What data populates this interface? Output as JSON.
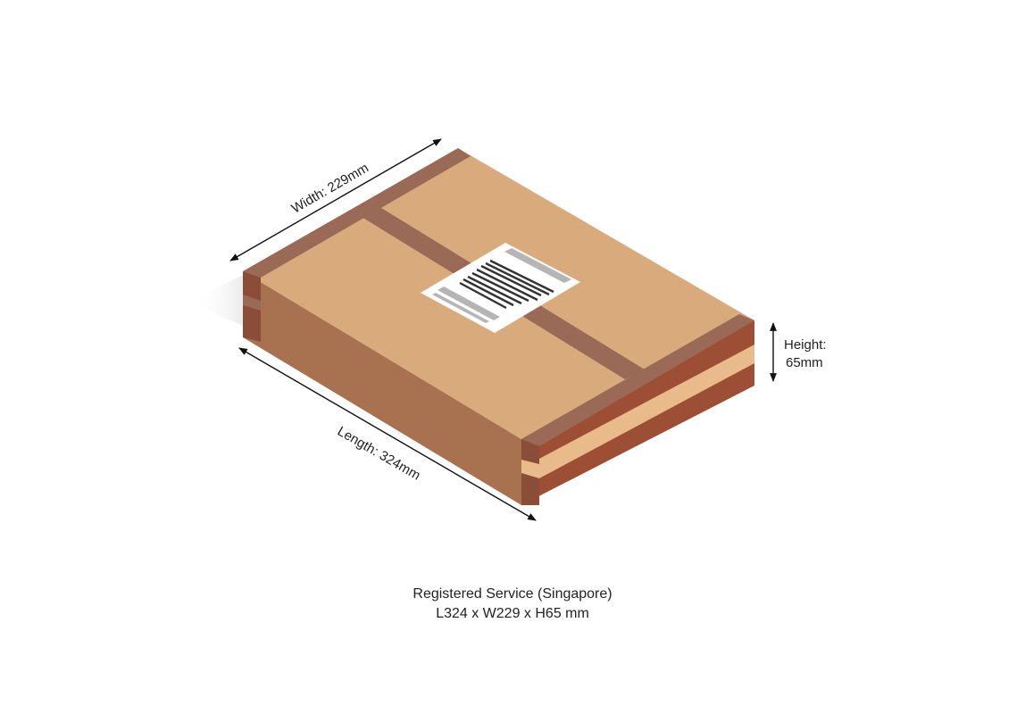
{
  "dimensions": {
    "width_label": "Width: 229mm",
    "length_label": "Length: 324mm",
    "height_label_line1": "Height:",
    "height_label_line2": "65mm"
  },
  "caption": {
    "line1": "Registered Service (Singapore)",
    "line2": "L324 x W229 x H65 mm"
  },
  "colors": {
    "box_top": "#d8aa7c",
    "box_side_left": "#a87250",
    "box_side_right": "#9c4f35",
    "tape": "#9b6a57",
    "tape_dark": "#8a4d37",
    "stripe_light": "#e9bb8a",
    "label_bg": "#ffffff",
    "label_gray": "#b5b5b5",
    "barcode": "#333333",
    "arrow": "#111111"
  },
  "icons": [
    "parcel-box-icon",
    "shipping-label-icon",
    "barcode-icon"
  ]
}
